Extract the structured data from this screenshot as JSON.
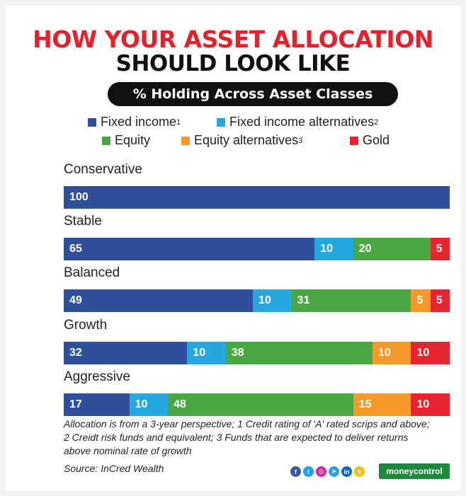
{
  "title_line1": "HOW YOUR ASSET ALLOCATION",
  "title_line2": "SHOULD LOOK LIKE",
  "subtitle": "% Holding Across Asset Classes",
  "legend": [
    {
      "label": "Fixed income",
      "sup": "1",
      "color": "#2f4f9a"
    },
    {
      "label": "Fixed income alternatives",
      "sup": "2",
      "color": "#25a8e0"
    },
    {
      "label": "Equity",
      "sup": "",
      "color": "#4aa844"
    },
    {
      "label": "Equity alternatives",
      "sup": "3",
      "color": "#f79a2a"
    },
    {
      "label": "Gold",
      "sup": "",
      "color": "#e8242e"
    }
  ],
  "chart_data": {
    "type": "bar",
    "orientation": "horizontal",
    "stacked": true,
    "title": "HOW YOUR ASSET ALLOCATION SHOULD LOOK LIKE",
    "subtitle": "% Holding Across Asset Classes",
    "xlim": [
      0,
      100
    ],
    "legend_position": "top",
    "categories": [
      "Conservative",
      "Stable",
      "Balanced",
      "Growth",
      "Aggressive"
    ],
    "series": [
      {
        "name": "Fixed income",
        "color": "#2f4f9a",
        "values": [
          100,
          65,
          49,
          32,
          17
        ]
      },
      {
        "name": "Fixed income alternatives",
        "color": "#25a8e0",
        "values": [
          0,
          10,
          10,
          10,
          10
        ]
      },
      {
        "name": "Equity",
        "color": "#4aa844",
        "values": [
          0,
          20,
          31,
          38,
          48
        ]
      },
      {
        "name": "Equity alternatives",
        "color": "#f79a2a",
        "values": [
          0,
          0,
          5,
          10,
          15
        ]
      },
      {
        "name": "Gold",
        "color": "#e8242e",
        "values": [
          0,
          5,
          5,
          10,
          10
        ]
      }
    ]
  },
  "footnote": "Allocation is from a 3-year perspective; 1 Credit rating of 'A' rated scrips and above; 2 Creidt risk funds and equivalent; 3 Funds that are expected to deliver returns above nominal rate of growth",
  "source": "Source: InCred Wealth",
  "social_icons": [
    {
      "name": "facebook-icon",
      "glyph": "f",
      "color": "#3b5998"
    },
    {
      "name": "twitter-icon",
      "glyph": "t",
      "color": "#1da1f2"
    },
    {
      "name": "instagram-icon",
      "glyph": "◎",
      "color": "#d6249f"
    },
    {
      "name": "telegram-icon",
      "glyph": "➤",
      "color": "#2aa3df"
    },
    {
      "name": "linkedin-icon",
      "glyph": "in",
      "color": "#0a66c2"
    },
    {
      "name": "koo-icon",
      "glyph": "k",
      "color": "#f2c200"
    }
  ],
  "brand": "moneycontrol"
}
